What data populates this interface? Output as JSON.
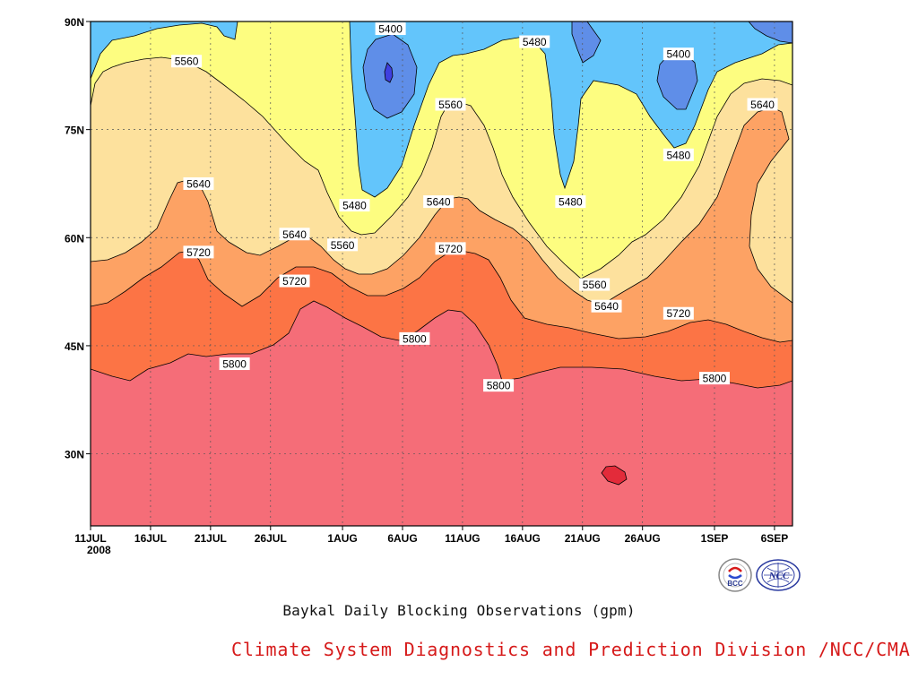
{
  "chart_data": {
    "type": "contour",
    "title": "Baykal Daily Blocking Observations (gpm)",
    "credit": "Climate System Diagnostics and Prediction Division /NCC/CMA",
    "x_ticks": [
      "11JUL",
      "16JUL",
      "21JUL",
      "26JUL",
      "1AUG",
      "6AUG",
      "11AUG",
      "16AUG",
      "21AUG",
      "26AUG",
      "1SEP",
      "6SEP"
    ],
    "x_year": "2008",
    "y_ticks": [
      "90N",
      "75N",
      "60N",
      "45N",
      "30N"
    ],
    "ylim": [
      20,
      90
    ],
    "levels": [
      5400,
      5480,
      5560,
      5640,
      5720,
      5800,
      5880
    ],
    "fill_colors": [
      "#3f3fe0",
      "#5f8ee8",
      "#63c5fb",
      "#fdfd80",
      "#fde19d",
      "#fda264",
      "#fc7445",
      "#f56d78",
      "#e32b3a"
    ],
    "contour_labels": [
      {
        "text": "5400",
        "date": "5AUG",
        "lat": 89
      },
      {
        "text": "5480",
        "date": "17AUG",
        "lat": 87.2
      },
      {
        "text": "5400",
        "date": "29AUG",
        "lat": 85.5
      },
      {
        "text": "5560",
        "date": "19JUL",
        "lat": 84.5
      },
      {
        "text": "5560",
        "date": "10AUG",
        "lat": 78.5
      },
      {
        "text": "5640",
        "date": "5SEP",
        "lat": 78.5
      },
      {
        "text": "5480",
        "date": "29AUG",
        "lat": 71.5
      },
      {
        "text": "5640",
        "date": "20JUL",
        "lat": 67.5
      },
      {
        "text": "5480",
        "date": "2AUG",
        "lat": 64.5
      },
      {
        "text": "5640",
        "date": "9AUG",
        "lat": 65
      },
      {
        "text": "5480",
        "date": "20AUG",
        "lat": 65
      },
      {
        "text": "5640",
        "date": "28JUL",
        "lat": 60.5
      },
      {
        "text": "5720",
        "date": "20JUL",
        "lat": 58
      },
      {
        "text": "5560",
        "date": "1AUG",
        "lat": 59
      },
      {
        "text": "5720",
        "date": "10AUG",
        "lat": 58.5
      },
      {
        "text": "5720",
        "date": "28JUL",
        "lat": 54
      },
      {
        "text": "5560",
        "date": "22AUG",
        "lat": 53.5
      },
      {
        "text": "5640",
        "date": "23AUG",
        "lat": 50.5
      },
      {
        "text": "5720",
        "date": "29AUG",
        "lat": 49.5
      },
      {
        "text": "5800",
        "date": "7AUG",
        "lat": 46
      },
      {
        "text": "5800",
        "date": "23JUL",
        "lat": 42.5
      },
      {
        "text": "5800",
        "date": "1SEP",
        "lat": 40.5
      },
      {
        "text": "5800",
        "date": "14AUG",
        "lat": 39.5
      }
    ]
  },
  "logos": {
    "left": "BCC",
    "right": "NCC"
  },
  "colors": {
    "credit": "#d61a1a",
    "contour_line": "#000000"
  }
}
